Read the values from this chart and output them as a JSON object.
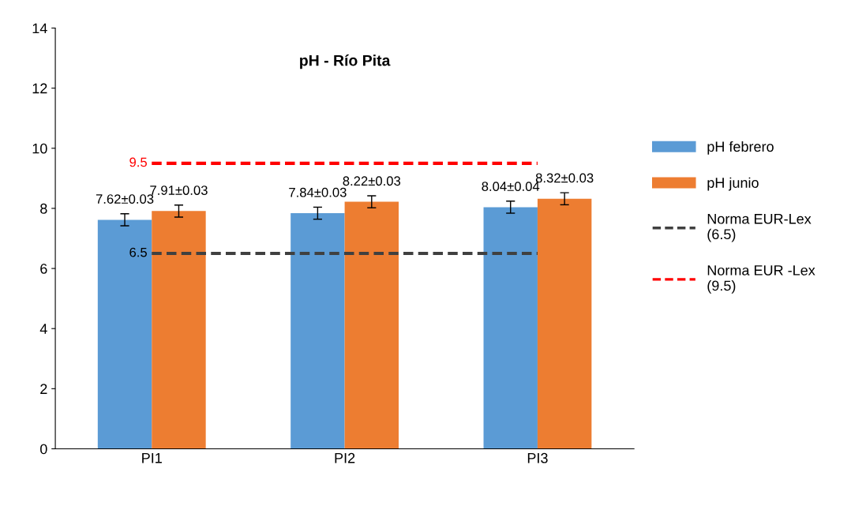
{
  "chart_data": {
    "type": "bar",
    "title": "pH - Río Pita",
    "categories": [
      "PI1",
      "PI2",
      "PI3"
    ],
    "series": [
      {
        "name": "pH febrero",
        "color": "#5b9bd5",
        "values": [
          7.62,
          7.84,
          8.04
        ],
        "errors": [
          0.2,
          0.2,
          0.2
        ],
        "value_labels": [
          "7.62±0.03",
          "7.84±0.03",
          "8.04±0.04"
        ]
      },
      {
        "name": "pH junio",
        "color": "#ed7d31",
        "values": [
          7.91,
          8.22,
          8.32
        ],
        "errors": [
          0.2,
          0.2,
          0.2
        ],
        "value_labels": [
          "7.91±0.03",
          "8.22±0.03",
          "8.32±0.03"
        ]
      },
      {
        "name": "Norma EUR-Lex (6.5)",
        "type": "line",
        "line_style": "dashed",
        "color": "#404040",
        "values": [
          6.5,
          6.5,
          6.5
        ],
        "value_labels": [
          "6.5",
          null,
          null
        ]
      },
      {
        "name": "Norma EUR -Lex (9.5)",
        "type": "line",
        "line_style": "dashed",
        "color": "#ff0000",
        "values": [
          9.5,
          9.5,
          9.5
        ],
        "value_labels": [
          "9.5",
          null,
          null
        ]
      }
    ],
    "ylim": [
      0,
      14
    ],
    "yticks": [
      0,
      2,
      4,
      6,
      8,
      10,
      12,
      14
    ],
    "grid": false,
    "legend": "right"
  }
}
